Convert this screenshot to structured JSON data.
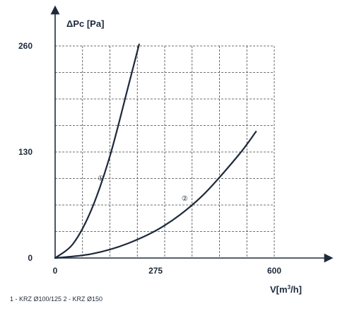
{
  "chart_data": {
    "type": "line",
    "ylabel": "ΔPc [Pa]",
    "xlabel_base": "V[m",
    "xlabel_sup": "3",
    "xlabel_tail": "/h]",
    "xlim": [
      0,
      600
    ],
    "ylim": [
      0,
      260
    ],
    "x_ticks": [
      0,
      275,
      600
    ],
    "x_tick_labels": [
      "0",
      "275",
      "600"
    ],
    "y_ticks": [
      0,
      130,
      260
    ],
    "y_tick_labels": [
      "0",
      "130",
      "260"
    ],
    "grid": true,
    "grid_style": "dashed",
    "series": [
      {
        "name": "1",
        "marker_label": "①",
        "label_at": {
          "x": 125,
          "y": 95
        },
        "color": "#1e2a3a",
        "x": [
          0,
          50,
          100,
          150,
          200,
          230
        ],
        "y": [
          0,
          18,
          60,
          125,
          210,
          262
        ]
      },
      {
        "name": "2",
        "marker_label": "②",
        "label_at": {
          "x": 355,
          "y": 70
        },
        "color": "#1e2a3a",
        "x": [
          0,
          100,
          200,
          300,
          400,
          500,
          550
        ],
        "y": [
          0,
          5,
          18,
          40,
          75,
          125,
          155
        ]
      }
    ],
    "footnote": "1 - KRZ Ø100/125   2 - KRZ Ø150"
  }
}
